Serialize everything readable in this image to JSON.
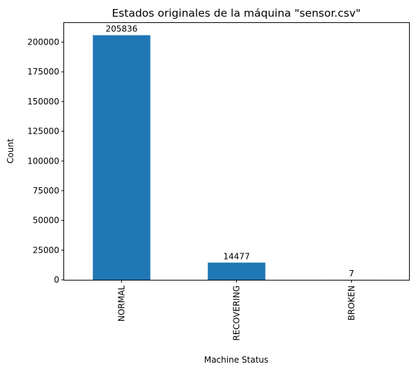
{
  "chart_data": {
    "type": "bar",
    "title": "Estados originales de la máquina \"sensor.csv\"",
    "xlabel": "Machine Status",
    "ylabel": "Count",
    "categories": [
      "NORMAL",
      "RECOVERING",
      "BROKEN"
    ],
    "values": [
      205836,
      14477,
      7
    ],
    "data_labels": [
      "205836",
      "14477",
      "7"
    ],
    "ylim": [
      0,
      216128
    ],
    "yticks": [
      0,
      25000,
      50000,
      75000,
      100000,
      125000,
      150000,
      175000,
      200000
    ],
    "bar_color": "#1f77b4",
    "grid": false,
    "legend": "none",
    "x_tick_rotation": "vertical"
  }
}
